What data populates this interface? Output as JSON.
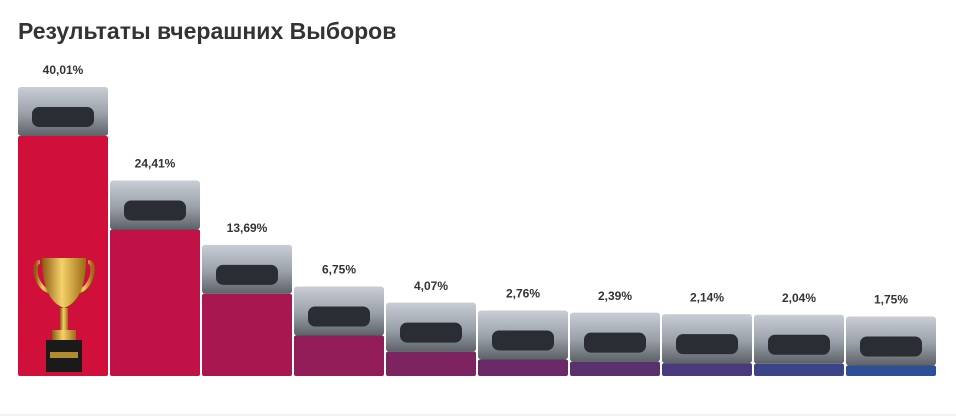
{
  "chart_data": {
    "type": "bar",
    "title": "Результаты вчерашних Выборов",
    "values": [
      40.01,
      24.41,
      13.69,
      6.75,
      4.07,
      2.76,
      2.39,
      2.14,
      2.04,
      1.75
    ],
    "value_labels": [
      "40,01%",
      "24,41%",
      "13,69%",
      "6,75%",
      "4,07%",
      "2,76%",
      "2,39%",
      "2,14%",
      "2,04%",
      "1,75%"
    ],
    "colors": [
      "#d0103a",
      "#c01246",
      "#a8174f",
      "#921c57",
      "#7d235f",
      "#6c2967",
      "#5b306f",
      "#493a7c",
      "#3b4488",
      "#2c4f98"
    ]
  }
}
